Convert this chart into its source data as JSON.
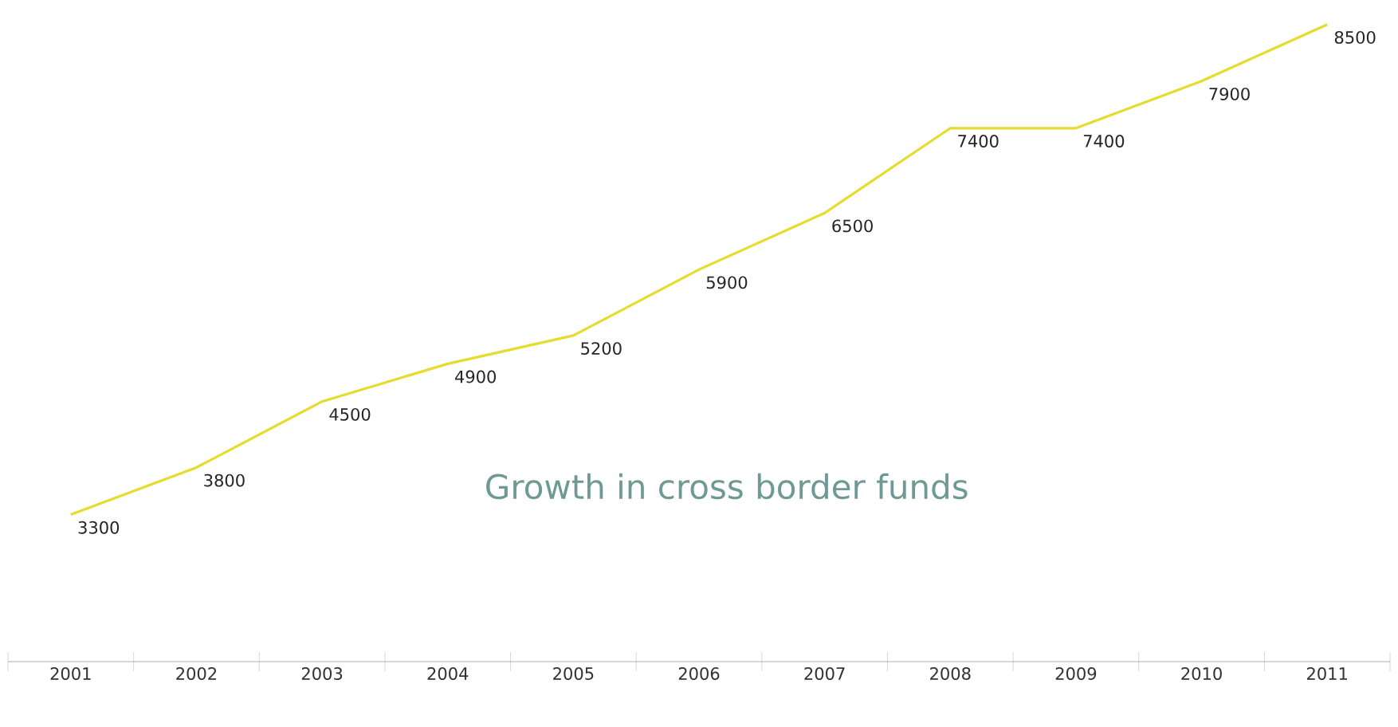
{
  "chart_data": {
    "type": "line",
    "title": "Growth in cross border funds",
    "categories": [
      "2001",
      "2002",
      "2003",
      "2004",
      "2005",
      "2006",
      "2007",
      "2008",
      "2009",
      "2010",
      "2011"
    ],
    "series": [
      {
        "color": "#e5dc2e",
        "values": [
          3300,
          3800,
          4500,
          4900,
          5200,
          5900,
          6500,
          7400,
          7400,
          7900,
          8500
        ]
      }
    ],
    "data_labels": true,
    "marker": "none",
    "line_style": "solid"
  }
}
